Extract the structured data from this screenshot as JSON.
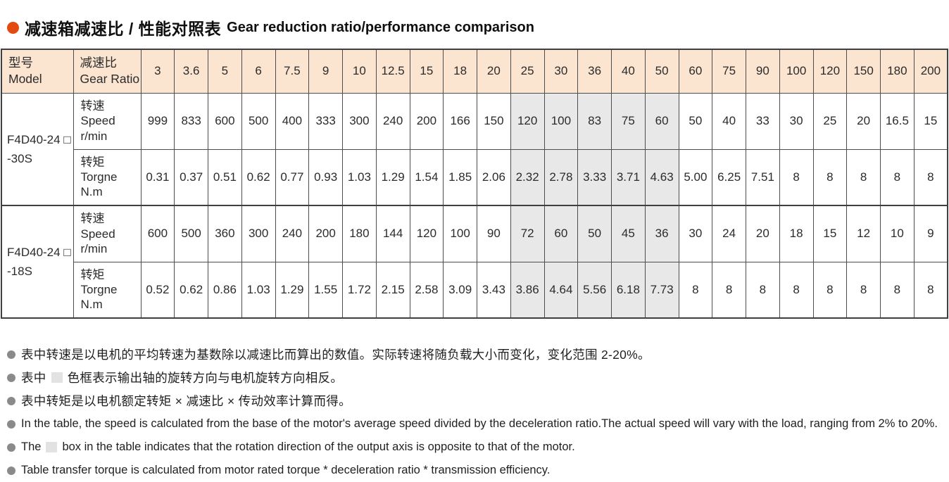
{
  "title": {
    "zh": "减速箱减速比 / 性能对照表",
    "en": "Gear reduction ratio/performance comparison",
    "bullet_color": "#e24a10"
  },
  "table": {
    "header": {
      "model_zh": "型号",
      "model_en": "Model",
      "ratio_zh": "减速比",
      "ratio_en": "Gear Ratio",
      "ratios": [
        "3",
        "3.6",
        "5",
        "6",
        "7.5",
        "9",
        "10",
        "12.5",
        "15",
        "18",
        "20",
        "25",
        "30",
        "36",
        "40",
        "50",
        "60",
        "75",
        "90",
        "100",
        "120",
        "150",
        "180",
        "200"
      ]
    },
    "shaded_ratios": [
      "25",
      "30",
      "36",
      "40",
      "50"
    ],
    "colors": {
      "header_bg": "#fbe4d0",
      "shaded_bg": "#e8e8e8",
      "border": "#4d4d4d"
    },
    "groups": [
      {
        "model_line1": "F4D40-24 □",
        "model_line2": "-30S",
        "rows": [
          {
            "label_zh": "转速",
            "label_en": "Speed",
            "label_unit": "r/min",
            "values": [
              "999",
              "833",
              "600",
              "500",
              "400",
              "333",
              "300",
              "240",
              "200",
              "166",
              "150",
              "120",
              "100",
              "83",
              "75",
              "60",
              "50",
              "40",
              "33",
              "30",
              "25",
              "20",
              "16.5",
              "15"
            ]
          },
          {
            "label_zh": "转矩",
            "label_en": "Torgne",
            "label_unit": "N.m",
            "values": [
              "0.31",
              "0.37",
              "0.51",
              "0.62",
              "0.77",
              "0.93",
              "1.03",
              "1.29",
              "1.54",
              "1.85",
              "2.06",
              "2.32",
              "2.78",
              "3.33",
              "3.71",
              "4.63",
              "5.00",
              "6.25",
              "7.51",
              "8",
              "8",
              "8",
              "8",
              "8"
            ]
          }
        ]
      },
      {
        "model_line1": "F4D40-24 □",
        "model_line2": "-18S",
        "rows": [
          {
            "label_zh": "转速",
            "label_en": "Speed",
            "label_unit": "r/min",
            "values": [
              "600",
              "500",
              "360",
              "300",
              "240",
              "200",
              "180",
              "144",
              "120",
              "100",
              "90",
              "72",
              "60",
              "50",
              "45",
              "36",
              "30",
              "24",
              "20",
              "18",
              "15",
              "12",
              "10",
              "9"
            ]
          },
          {
            "label_zh": "转矩",
            "label_en": "Torgne",
            "label_unit": "N.m",
            "values": [
              "0.52",
              "0.62",
              "0.86",
              "1.03",
              "1.29",
              "1.55",
              "1.72",
              "2.15",
              "2.58",
              "3.09",
              "3.43",
              "3.86",
              "4.64",
              "5.56",
              "6.18",
              "7.73",
              "8",
              "8",
              "8",
              "8",
              "8",
              "8",
              "8",
              "8"
            ]
          }
        ]
      }
    ]
  },
  "notes": [
    {
      "lang": "zh",
      "parts": [
        {
          "type": "text",
          "value": "表中转速是以电机的平均转速为基数除以减速比而算出的数值。实际转速将随负载大小而变化，变化范围 2-20%。"
        }
      ]
    },
    {
      "lang": "zh",
      "parts": [
        {
          "type": "text",
          "value": "表中"
        },
        {
          "type": "swatch"
        },
        {
          "type": "text",
          "value": "色框表示输出轴的旋转方向与电机旋转方向相反。"
        }
      ]
    },
    {
      "lang": "zh",
      "parts": [
        {
          "type": "text",
          "value": "表中转矩是以电机额定转矩 × 减速比 × 传动效率计算而得。"
        }
      ]
    },
    {
      "lang": "en",
      "parts": [
        {
          "type": "text",
          "value": "In the table, the speed is calculated from the base of the motor's average speed  divided by the deceleration ratio.The actual speed will vary with the load, ranging from 2% to 20%."
        }
      ]
    },
    {
      "lang": "en",
      "parts": [
        {
          "type": "text",
          "value": "The"
        },
        {
          "type": "swatch"
        },
        {
          "type": "text",
          "value": "box in the table indicates that the rotation direction of the output axis is opposite to that of the motor."
        }
      ]
    },
    {
      "lang": "en",
      "parts": [
        {
          "type": "text",
          "value": "Table transfer torque is calculated from motor rated torque * deceleration ratio * transmission efficiency."
        }
      ]
    }
  ]
}
